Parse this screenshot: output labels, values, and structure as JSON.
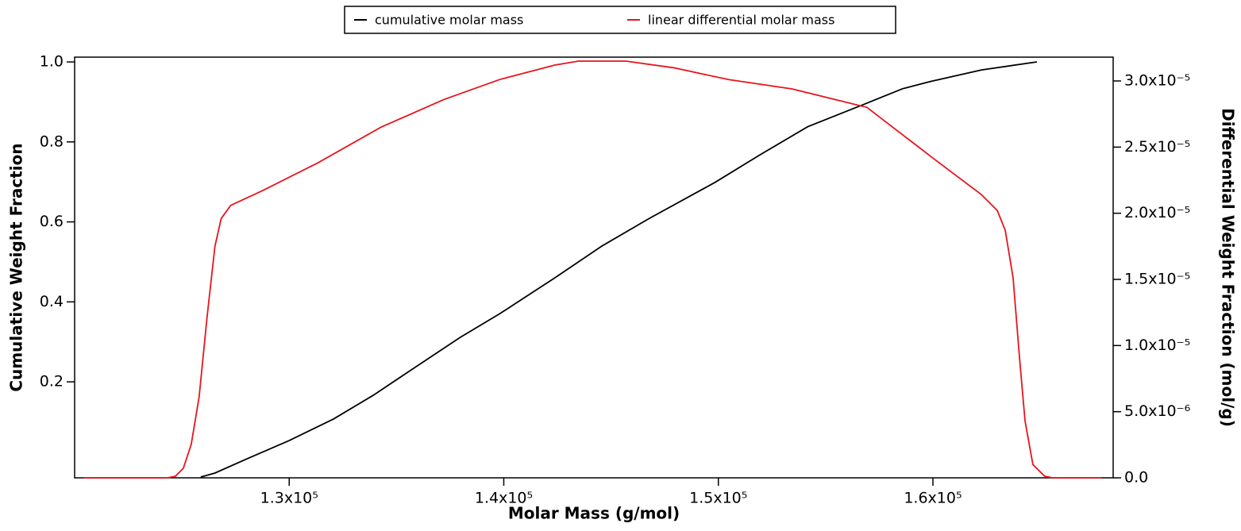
{
  "chart_data": {
    "type": "line",
    "x_label": "Molar Mass (g/mol)",
    "y_label": "Cumulative Weight Fraction",
    "y2_label": "Differential Weight Fraction (mol/g)",
    "legend": "top",
    "xlim": [
      120000,
      168400
    ],
    "xticks": [
      {
        "value": 130000,
        "label": "1.3x10⁵"
      },
      {
        "value": 140000,
        "label": "1.4x10⁵"
      },
      {
        "value": 150000,
        "label": "1.5x10⁵"
      },
      {
        "value": 160000,
        "label": "1.6x10⁵"
      }
    ],
    "ylim": [
      -0.04,
      1.012
    ],
    "yticks": [
      0.2,
      0.4,
      0.6,
      {
        "value": 0.8,
        "label": "0.8"
      },
      {
        "value": 1,
        "label": "1.0"
      }
    ],
    "y2lim": [
      0,
      3.18e-05
    ],
    "y2ticks": [
      {
        "value": 0,
        "label": "0.0"
      },
      {
        "value": 5e-06,
        "label": "5.0x10⁻⁶"
      },
      {
        "value": 1e-05,
        "label": "1.0x10⁻⁵"
      },
      {
        "value": 1.5e-05,
        "label": "1.5x10⁻⁵"
      },
      {
        "value": 2e-05,
        "label": "2.0x10⁻⁵"
      },
      {
        "value": 2.5e-05,
        "label": "2.5x10⁻⁵"
      },
      {
        "value": 3e-05,
        "label": "3.0x10⁻⁵"
      }
    ],
    "series": [
      {
        "name": "cumulative molar mass",
        "color": "#000000",
        "axis": "y",
        "x": [
          125875,
          126537,
          128011,
          130000,
          132063,
          133904,
          135746,
          137956,
          139834,
          142376,
          144585,
          146795,
          149852,
          151952,
          154162,
          156924,
          158582,
          159871,
          162265,
          164843
        ],
        "values": [
          -0.038,
          -0.028,
          0.007,
          0.053,
          0.107,
          0.166,
          0.232,
          0.311,
          0.371,
          0.46,
          0.54,
          0.609,
          0.699,
          0.768,
          0.838,
          0.897,
          0.933,
          0.951,
          0.98,
          1.0
        ]
      },
      {
        "name": "linear differential molar mass",
        "color": "#e8141c",
        "axis": "y2",
        "x": [
          120424,
          124328,
          124696,
          125065,
          125433,
          125801,
          126169,
          126538,
          126832,
          127274,
          128748,
          131326,
          134273,
          137219,
          139797,
          142376,
          143481,
          145691,
          147901,
          150479,
          153425,
          156924,
          160055,
          162265,
          163002,
          163370,
          163738,
          164033,
          164291,
          164659,
          165212,
          165580,
          167864
        ],
        "values": [
          0,
          0,
          1.2e-07,
          7.2e-07,
          2.52e-06,
          6.12e-06,
          1.21e-05,
          1.75e-05,
          1.96e-05,
          2.06e-05,
          2.17e-05,
          2.38e-05,
          2.65e-05,
          2.86e-05,
          3.01e-05,
          3.12e-05,
          3.15e-05,
          3.15e-05,
          3.1e-05,
          3.01e-05,
          2.94e-05,
          2.8e-05,
          2.41e-05,
          2.14e-05,
          2.02e-05,
          1.87e-05,
          1.51e-05,
          9.1e-06,
          4.3e-06,
          1e-06,
          1.2e-07,
          0,
          0
        ]
      }
    ]
  }
}
